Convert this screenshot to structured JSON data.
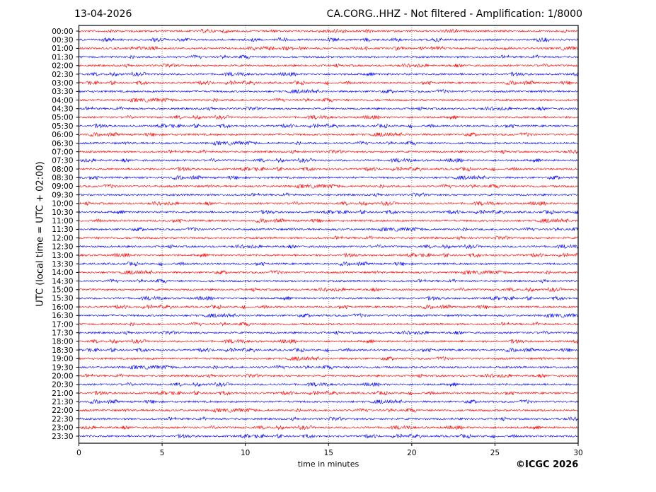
{
  "header": {
    "date": "13-04-2026",
    "title": "CA.CORG..HHZ - Not filtered - Amplification: 1/8000"
  },
  "footer": {
    "copyright": "©ICGC 2026"
  },
  "chart_data": {
    "type": "line",
    "title": "CA.CORG..HHZ - Not filtered - Amplification: 1/8000",
    "xlabel": "time in minutes",
    "ylabel": "UTC (local time = UTC + 02:00)",
    "xlim": [
      0,
      30
    ],
    "xticks": [
      0,
      5,
      10,
      15,
      20,
      25,
      30
    ],
    "grid": "vertical dotted at x ticks",
    "row_labels": [
      "00:00",
      "00:30",
      "01:00",
      "01:30",
      "02:00",
      "02:30",
      "03:00",
      "03:30",
      "04:00",
      "04:30",
      "05:00",
      "05:30",
      "06:00",
      "06:30",
      "07:00",
      "07:30",
      "08:00",
      "08:30",
      "09:00",
      "09:30",
      "10:00",
      "10:30",
      "11:00",
      "11:30",
      "12:00",
      "12:30",
      "13:00",
      "13:30",
      "14:00",
      "14:30",
      "15:00",
      "15:30",
      "16:00",
      "16:30",
      "17:00",
      "17:30",
      "18:00",
      "18:30",
      "19:00",
      "19:30",
      "20:00",
      "20:30",
      "21:00",
      "21:30",
      "22:00",
      "22:30",
      "23:00",
      "23:30"
    ],
    "trace_colors": [
      "#ff0000",
      "#0000ff"
    ],
    "trace_style": "continuous low-amplitude seismic noise, alternating red/blue per row"
  }
}
